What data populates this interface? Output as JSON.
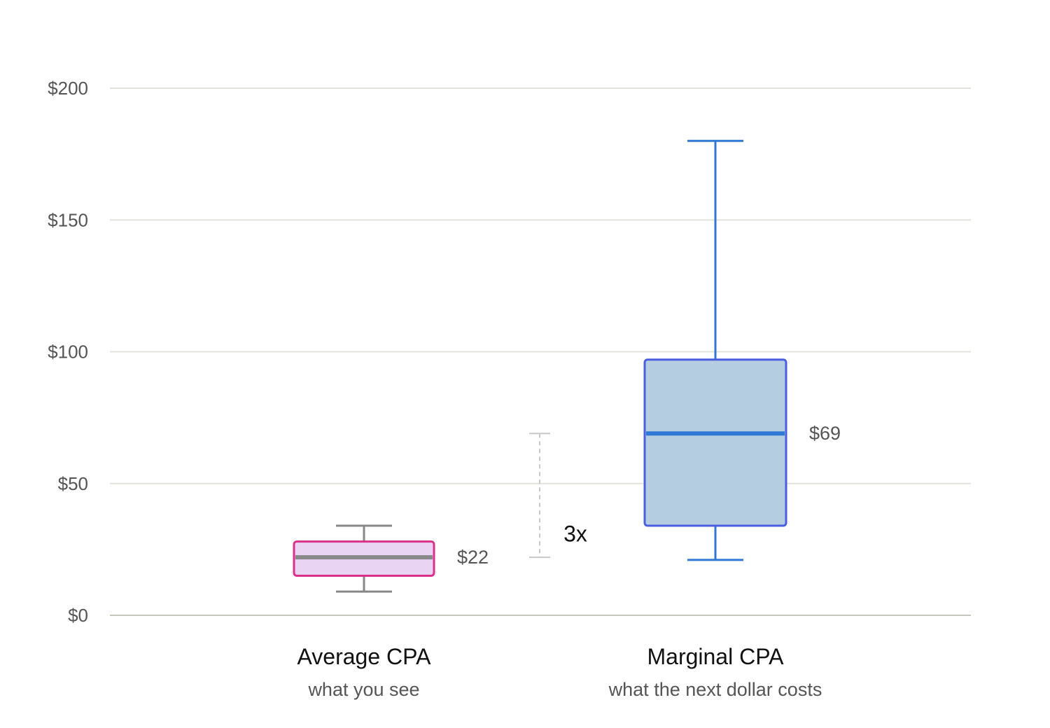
{
  "chart_data": {
    "type": "box",
    "title": "",
    "xlabel": "",
    "ylabel": "",
    "ylim": [
      0,
      200
    ],
    "y_ticks": [
      0,
      50,
      100,
      150,
      200
    ],
    "y_tick_labels": [
      "$0",
      "$50",
      "$100",
      "$150",
      "$200"
    ],
    "grid": true,
    "series": [
      {
        "category": "Average CPA",
        "sublabel": "what you see",
        "whisker_low": 9,
        "q1": 15,
        "median": 22,
        "q3": 28,
        "whisker_high": 34,
        "median_label": "$22",
        "fill": "#ead4f4",
        "stroke": "#d9308a",
        "median_color": "#888888",
        "whisker_color": "#888888"
      },
      {
        "category": "Marginal CPA",
        "sublabel": "what the next dollar costs",
        "whisker_low": 21,
        "q1": 34,
        "median": 69,
        "q3": 97,
        "whisker_high": 180,
        "median_label": "$69",
        "fill": "#b5cde0",
        "stroke": "#4a5fe0",
        "median_color": "#2f78d4",
        "whisker_color": "#2f78d4"
      }
    ],
    "annotation": {
      "text": "3x",
      "from": 22,
      "to": 69,
      "color": "#c8c8c8"
    },
    "colors": {
      "grid": "#e3e3dc",
      "baseline": "#c6c6bd"
    }
  }
}
